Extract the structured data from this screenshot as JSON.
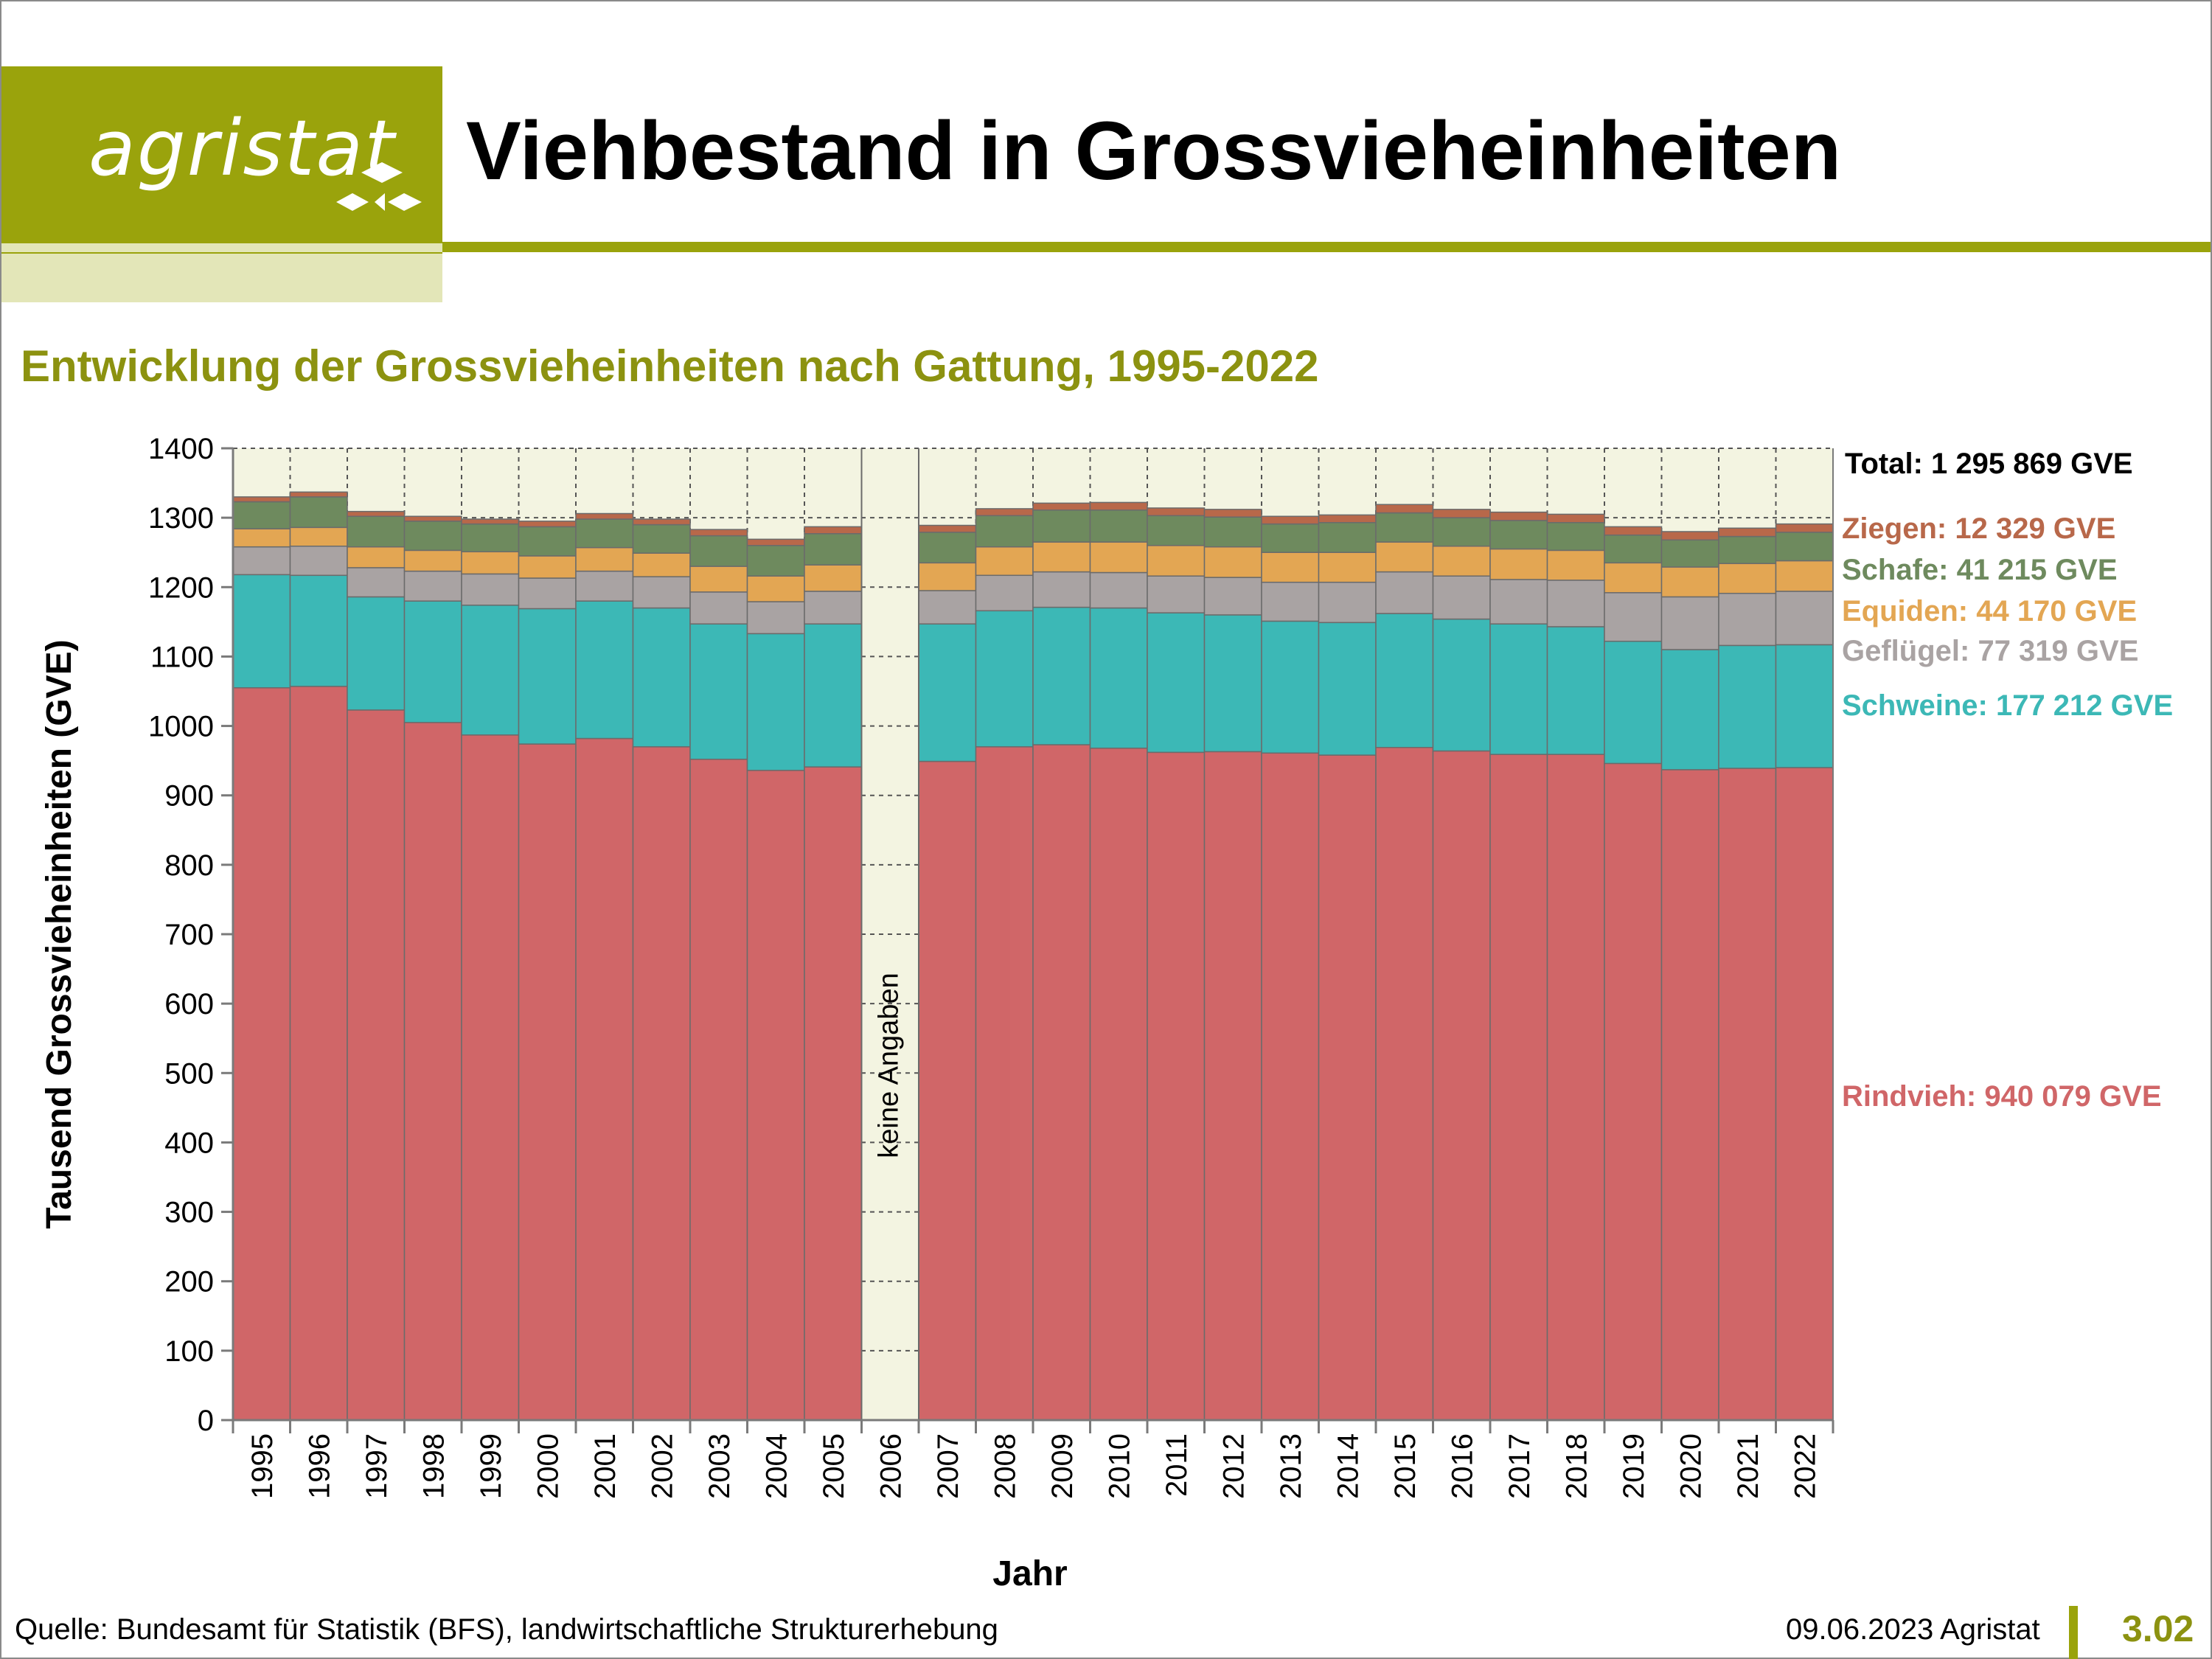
{
  "header": {
    "logo_text": "agristat",
    "title": "Viehbestand in Grossvieheinheiten"
  },
  "subtitle": "Entwicklung der Grossvieheinheiten nach Gattung, 1995-2022",
  "footer": {
    "source": "Quelle: Bundesamt für Statistik (BFS), landwirtschaftliche Strukturerhebung",
    "date": "09.06.2023 Agristat",
    "number": "3.02"
  },
  "chart_data": {
    "type": "bar",
    "stacked": true,
    "xlabel": "Jahr",
    "ylabel": "Tausend Grossvieheinheiten (GVE)",
    "ylim": [
      0,
      1400
    ],
    "yticks": [
      0,
      100,
      200,
      300,
      400,
      500,
      600,
      700,
      800,
      900,
      1000,
      1100,
      1200,
      1300,
      1400
    ],
    "categories": [
      "1995",
      "1996",
      "1997",
      "1998",
      "1999",
      "2000",
      "2001",
      "2002",
      "2003",
      "2004",
      "2005",
      "2006",
      "2007",
      "2008",
      "2009",
      "2010",
      "2011",
      "2012",
      "2013",
      "2014",
      "2015",
      "2016",
      "2017",
      "2018",
      "2019",
      "2020",
      "2021",
      "2022"
    ],
    "no_data_category": "2006",
    "no_data_label": "keine Angaben",
    "series": [
      {
        "name": "Rindvieh",
        "color": "#d06668",
        "values": [
          1055,
          1057,
          1023,
          1005,
          987,
          974,
          982,
          970,
          952,
          936,
          941,
          null,
          949,
          970,
          973,
          968,
          962,
          963,
          961,
          958,
          969,
          964,
          959,
          959,
          946,
          937,
          939,
          940
        ]
      },
      {
        "name": "Schweine",
        "color": "#3cb8b6",
        "values": [
          163,
          160,
          163,
          175,
          187,
          195,
          198,
          200,
          195,
          197,
          206,
          null,
          198,
          196,
          198,
          202,
          201,
          197,
          190,
          191,
          193,
          190,
          188,
          184,
          176,
          173,
          177,
          177
        ]
      },
      {
        "name": "Geflügel",
        "color": "#a9a3a3",
        "values": [
          40,
          42,
          42,
          43,
          45,
          44,
          43,
          45,
          46,
          46,
          47,
          null,
          48,
          51,
          51,
          51,
          53,
          54,
          56,
          58,
          60,
          62,
          64,
          67,
          70,
          76,
          75,
          77
        ]
      },
      {
        "name": "Equiden",
        "color": "#e3a653",
        "values": [
          26,
          27,
          30,
          30,
          32,
          32,
          34,
          34,
          37,
          37,
          38,
          null,
          40,
          41,
          43,
          44,
          44,
          44,
          43,
          43,
          43,
          43,
          44,
          43,
          43,
          43,
          43,
          44
        ]
      },
      {
        "name": "Schafe",
        "color": "#6e8a5e",
        "values": [
          39,
          44,
          44,
          42,
          40,
          42,
          41,
          41,
          44,
          44,
          45,
          null,
          44,
          45,
          46,
          46,
          43,
          43,
          41,
          43,
          42,
          41,
          41,
          40,
          40,
          39,
          39,
          41
        ]
      },
      {
        "name": "Ziegen",
        "color": "#b8684a",
        "values": [
          7,
          7,
          7,
          7,
          7,
          8,
          8,
          8,
          9,
          9,
          10,
          null,
          10,
          10,
          10,
          11,
          11,
          11,
          11,
          11,
          12,
          12,
          12,
          12,
          12,
          12,
          12,
          12
        ]
      }
    ],
    "end_labels": {
      "total": "Total: 1 295 869 GVE",
      "items": [
        {
          "text": "Ziegen: 12 329 GVE",
          "color": "#b8684a"
        },
        {
          "text": "Schafe: 41 215 GVE",
          "color": "#6e8a5e"
        },
        {
          "text": "Equiden: 44 170 GVE",
          "color": "#e3a653"
        },
        {
          "text": "Geflügel: 77 319 GVE",
          "color": "#a9a3a3"
        },
        {
          "text": "Schweine: 177 212 GVE",
          "color": "#3cb8b6"
        },
        {
          "text": "Rindvieh: 940 079 GVE",
          "color": "#d06668"
        }
      ]
    }
  }
}
